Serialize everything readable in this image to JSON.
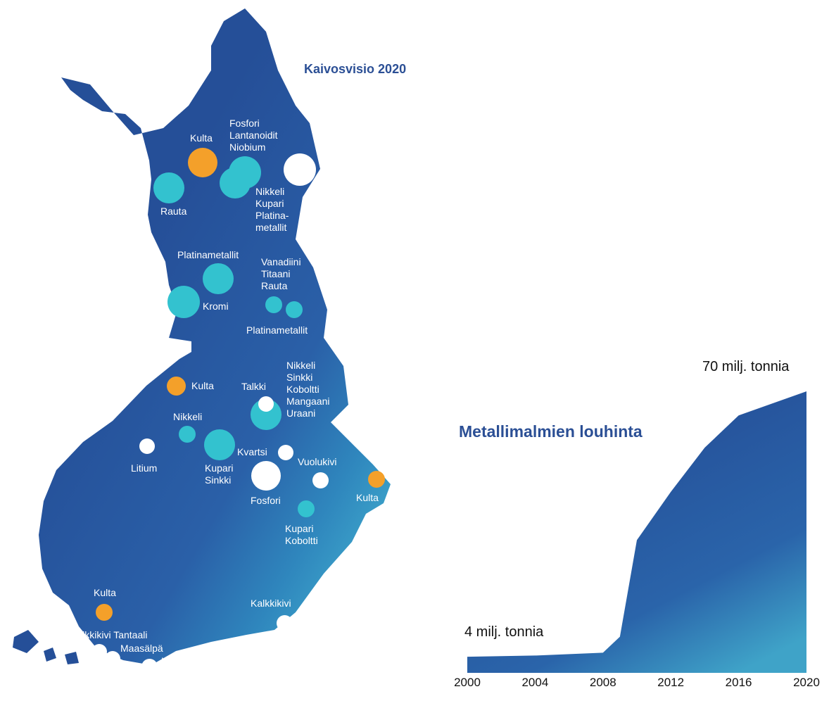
{
  "map": {
    "title": "Kaivosvisio 2020",
    "legend_colors": {
      "kulta": "#f4a02a",
      "metals": "#33c2cf",
      "industrial_minerals": "#ffffff"
    },
    "land_color": "#254f98",
    "labels": {
      "kulta_north": "Kulta",
      "fosfori_group": [
        "Fosfori",
        "Lantanoidit",
        "Niobium"
      ],
      "rauta_north": "Rauta",
      "nikkeli_group_north": [
        "Nikkeli",
        "Kupari",
        "Platina-",
        "metallit"
      ],
      "platinametallit_1": "Platinametallit",
      "vanadiini_group": [
        "Vanadiini",
        "Titaani",
        "Rauta"
      ],
      "kromi": "Kromi",
      "platinametallit_2": "Platinametallit",
      "nikkeli_group_mid": [
        "Nikkeli",
        "Sinkki",
        "Koboltti",
        "Mangaani",
        "Uraani"
      ],
      "kulta_mid": "Kulta",
      "talkki": "Talkki",
      "nikkeli_mid": "Nikkeli",
      "litium": "Litium",
      "kvartsi": "Kvartsi",
      "kupari_sinkki": [
        "Kupari",
        "Sinkki"
      ],
      "vuolukivi": "Vuolukivi",
      "fosfori_south": "Fosfori",
      "kulta_east": "Kulta",
      "kupari_koboltti": [
        "Kupari",
        "Koboltti"
      ],
      "kulta_south": "Kulta",
      "kalkkikivi_east": "Kalkkikivi",
      "kalkkikivi_tantaali": "Kalkkikivi Tantaali",
      "maasalpa": "Maasälpä",
      "kalkkikivi_south": "Kalkkikivi"
    }
  },
  "chart_data": {
    "type": "area",
    "title": "Metallimalmien louhinta",
    "x": [
      2000,
      2004,
      2008,
      2009,
      2010,
      2012,
      2014,
      2016,
      2018,
      2020
    ],
    "values": [
      4,
      4.3,
      5,
      9,
      33,
      45,
      56,
      64,
      67,
      70
    ],
    "unit": "milj. tonnia",
    "xlim": [
      2000,
      2020
    ],
    "ylim": [
      0,
      70
    ],
    "x_ticks": [
      "2000",
      "2004",
      "2008",
      "2012",
      "2016",
      "2020"
    ],
    "annotations": {
      "start": "4 milj. tonnia",
      "end": "70 milj. tonnia"
    },
    "fill_color_top": "#254f98",
    "fill_color_bottom": "#3fa3c8"
  }
}
